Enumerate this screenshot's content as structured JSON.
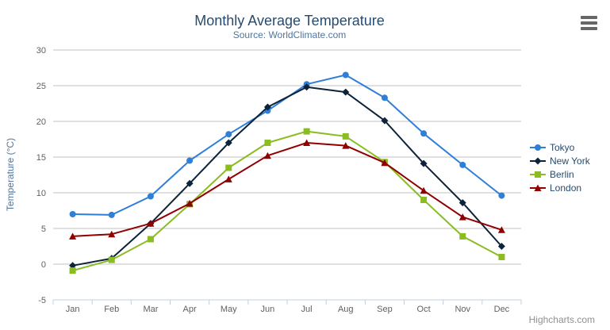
{
  "credits": {
    "label": "Highcharts.com"
  },
  "export_menu": {
    "icon": "hamburger-icon"
  },
  "chart_data": {
    "type": "line",
    "title": "Monthly Average Temperature",
    "subtitle": "Source: WorldClimate.com",
    "xlabel": "",
    "ylabel": "Temperature (°C)",
    "categories": [
      "Jan",
      "Feb",
      "Mar",
      "Apr",
      "May",
      "Jun",
      "Jul",
      "Aug",
      "Sep",
      "Oct",
      "Nov",
      "Dec"
    ],
    "series": [
      {
        "name": "Tokyo",
        "color": "#2f7ed8",
        "marker": "circle",
        "values": [
          7.0,
          6.9,
          9.5,
          14.5,
          18.2,
          21.5,
          25.2,
          26.5,
          23.3,
          18.3,
          13.9,
          9.6
        ]
      },
      {
        "name": "New York",
        "color": "#0d233a",
        "marker": "diamond",
        "values": [
          -0.2,
          0.8,
          5.7,
          11.3,
          17.0,
          22.0,
          24.8,
          24.1,
          20.1,
          14.1,
          8.6,
          2.5
        ]
      },
      {
        "name": "Berlin",
        "color": "#8bbc21",
        "marker": "square",
        "values": [
          -0.9,
          0.6,
          3.5,
          8.4,
          13.5,
          17.0,
          18.6,
          17.9,
          14.3,
          9.0,
          3.9,
          1.0
        ]
      },
      {
        "name": "London",
        "color": "#910000",
        "marker": "triangle",
        "values": [
          3.9,
          4.2,
          5.7,
          8.5,
          11.9,
          15.2,
          17.0,
          16.6,
          14.2,
          10.3,
          6.6,
          4.8
        ]
      }
    ],
    "ylim": [
      -5,
      30
    ],
    "y_ticks": [
      -5,
      0,
      5,
      10,
      15,
      20,
      25,
      30
    ],
    "grid": true,
    "legend_position": "right",
    "colors": {
      "title": "#274b6d",
      "subtitle": "#4d759e",
      "axis_title": "#4d759e",
      "axis_label": "#606060",
      "grid": "#c0c0c0",
      "axis_line": "#c0d0e0",
      "tick": "#c0d0e0",
      "legend_text": "#274b6d",
      "credits": "#909090",
      "menu_icon": "#666666",
      "background": "#ffffff"
    }
  }
}
